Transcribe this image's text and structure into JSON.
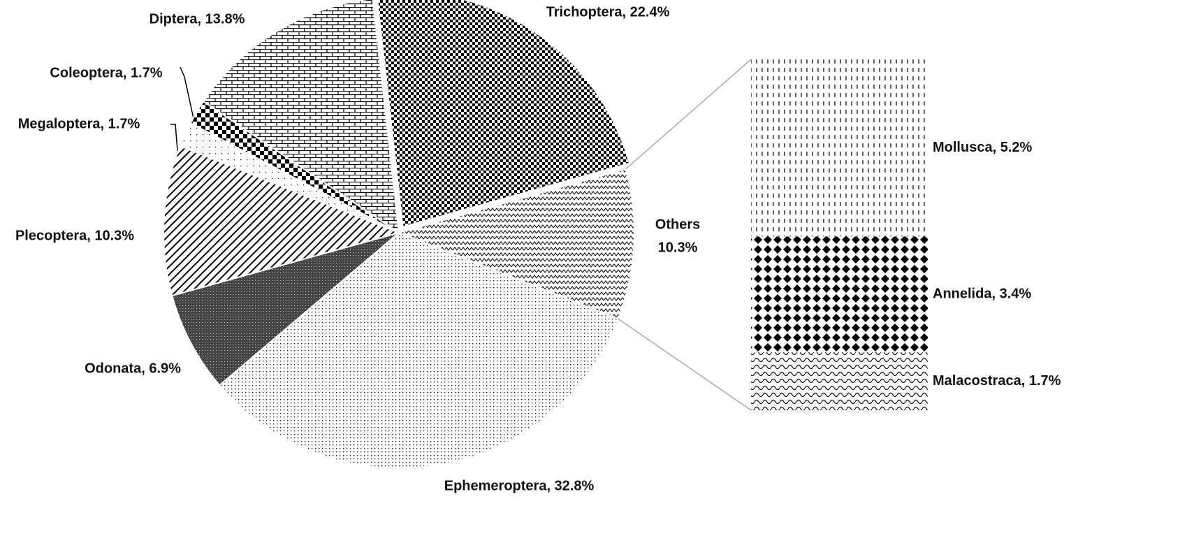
{
  "chart_data": {
    "type": "pie",
    "labels": [
      "Trichoptera, 22.4%",
      [
        "Others",
        "10.3%"
      ],
      "Ephemeroptera, 32.8%",
      "Odonata, 6.9%",
      "Plecoptera, 10.3%",
      "Megaloptera, 1.7%",
      "Coleoptera, 1.7%",
      "Diptera, 13.8%"
    ],
    "values": [
      22.4,
      10.3,
      32.8,
      6.9,
      10.3,
      1.7,
      1.7,
      13.8
    ],
    "bar": {
      "labels": [
        "Mollusca, 5.2%",
        "Annelida, 3.4%",
        "Malacostraca, 1.7%"
      ],
      "values": [
        5.2,
        3.4,
        1.7
      ]
    }
  }
}
